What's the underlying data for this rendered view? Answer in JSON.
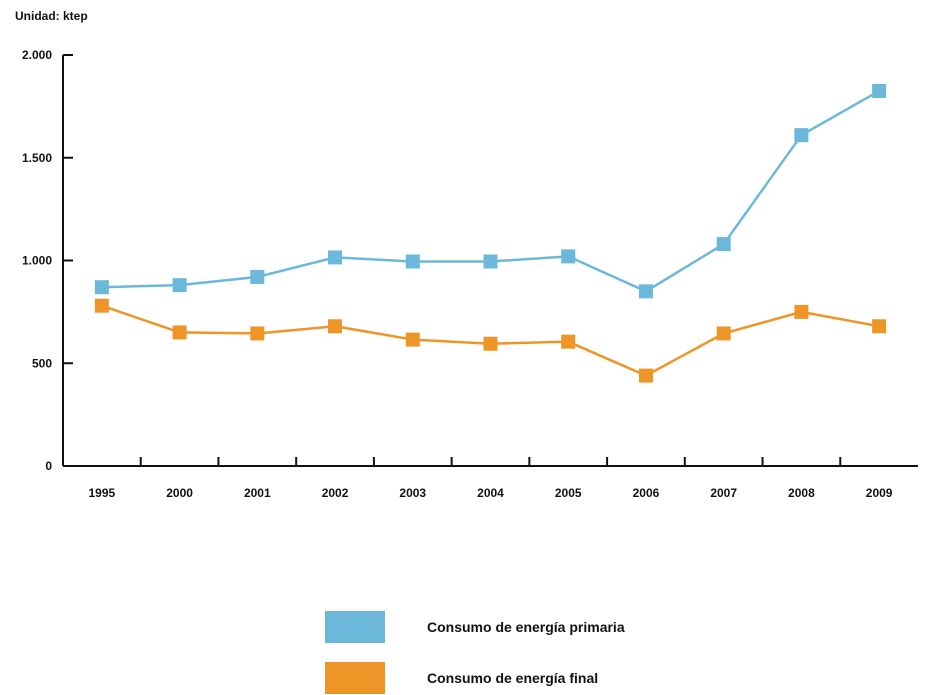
{
  "unit_label": "Unidad: ktep",
  "chart_data": {
    "type": "line",
    "categories": [
      "1995",
      "2000",
      "2001",
      "2002",
      "2003",
      "2004",
      "2005",
      "2006",
      "2007",
      "2008",
      "2009"
    ],
    "series": [
      {
        "name": "Consumo de energía primaria",
        "color": "#6BB8DA",
        "values": [
          870,
          880,
          920,
          1015,
          995,
          995,
          1020,
          850,
          1080,
          1610,
          1825
        ]
      },
      {
        "name": "Consumo de energía final",
        "color": "#EE9527",
        "values": [
          780,
          650,
          645,
          680,
          615,
          595,
          605,
          440,
          645,
          750,
          680
        ]
      }
    ],
    "ylim": [
      0,
      2000
    ],
    "yticks": [
      0,
      500,
      1000,
      1500,
      2000
    ],
    "ytick_labels": [
      "0",
      "500",
      "1.000",
      "1.500",
      "2.000"
    ],
    "grid": false,
    "legend_position": "bottom-center"
  }
}
